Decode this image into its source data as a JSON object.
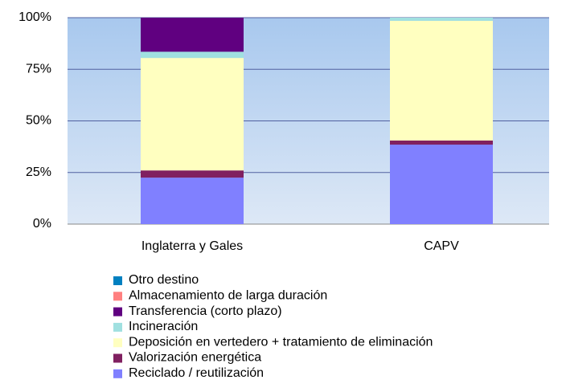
{
  "chart_data": {
    "type": "bar",
    "stacked": true,
    "categories": [
      "Inglaterra y Gales",
      "CAPV"
    ],
    "series": [
      {
        "name": "Reciclado / reutilización",
        "color": "#8080ff",
        "values": [
          22.5,
          38.5
        ]
      },
      {
        "name": "Valorización energética",
        "color": "#802060",
        "values": [
          3.5,
          2
        ]
      },
      {
        "name": "Deposición en vertedero + tratamiento de eliminación",
        "color": "#ffffc0",
        "values": [
          54.5,
          58
        ]
      },
      {
        "name": "Incineración",
        "color": "#a0e0e0",
        "values": [
          3,
          1.5
        ]
      },
      {
        "name": "Transferencia (corto plazo)",
        "color": "#600080",
        "values": [
          16.5,
          0
        ]
      },
      {
        "name": "Almacenamiento de larga duración",
        "color": "#ff8080",
        "values": [
          0,
          0
        ]
      },
      {
        "name": "Otro destino",
        "color": "#0080c0",
        "values": [
          0,
          0
        ]
      }
    ],
    "ylim": [
      0,
      100
    ],
    "yticks": [
      {
        "value": 0,
        "label": "0%"
      },
      {
        "value": 25,
        "label": "25%"
      },
      {
        "value": 50,
        "label": "50%"
      },
      {
        "value": 75,
        "label": "75%"
      },
      {
        "value": 100,
        "label": "100%"
      }
    ],
    "grid": true,
    "legend": "bottom"
  }
}
